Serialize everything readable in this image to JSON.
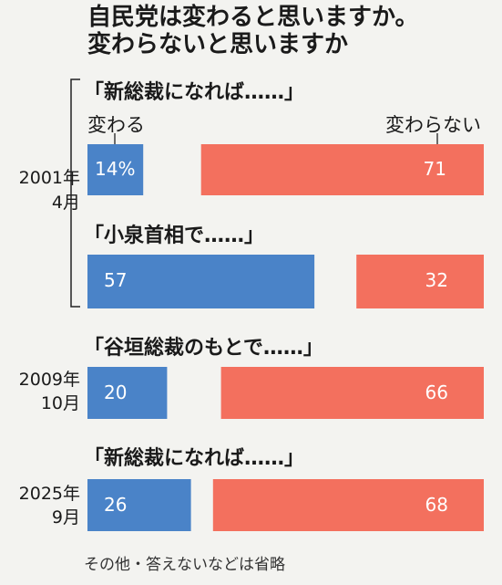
{
  "chart_data": {
    "type": "bar",
    "title_lines": [
      "自民党は変わると思いますか。",
      "変わらないと思いますか"
    ],
    "legend": [
      "変わる",
      "変わらない"
    ],
    "colors": {
      "change": "#4a83c8",
      "no_change": "#f3705e"
    },
    "groups": [
      {
        "date_lines": [
          "2001年",
          "4月"
        ],
        "label": "「新総裁になれば……」",
        "change": "14%",
        "no_change": "71",
        "change_value": 14,
        "no_change_value": 71
      },
      {
        "date_lines": [],
        "label": "「小泉首相で……」",
        "change": "57",
        "no_change": "32",
        "change_value": 57,
        "no_change_value": 32
      },
      {
        "date_lines": [
          "2009年",
          "10月"
        ],
        "label": "「谷垣総裁のもとで……」",
        "change": "20",
        "no_change": "66",
        "change_value": 20,
        "no_change_value": 66
      },
      {
        "date_lines": [
          "2025年",
          "9月"
        ],
        "label": "「新総裁になれば……」",
        "change": "26",
        "no_change": "68",
        "change_value": 26,
        "no_change_value": 68
      }
    ],
    "note": "その他・答えないなどは省略"
  }
}
